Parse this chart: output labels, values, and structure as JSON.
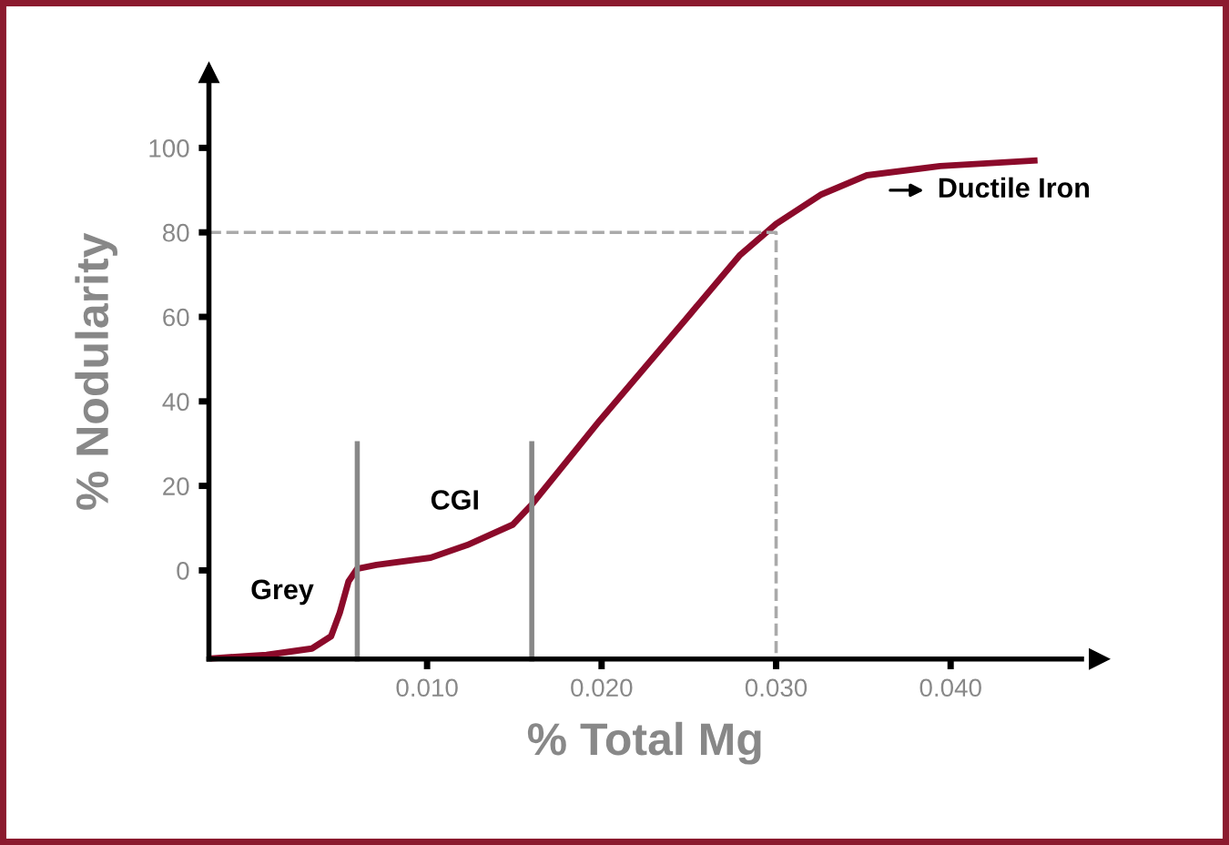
{
  "chart_data": {
    "type": "line",
    "xlabel": "% Total Mg",
    "ylabel": "% Nodularity",
    "xlim": [
      -0.0025,
      0.0475
    ],
    "ylim": [
      -21,
      115
    ],
    "xticks": [
      {
        "value": 0.01,
        "label": "0.010"
      },
      {
        "value": 0.02,
        "label": "0.020"
      },
      {
        "value": 0.03,
        "label": "0.030"
      },
      {
        "value": 0.04,
        "label": "0.040"
      }
    ],
    "yticks": [
      0,
      20,
      40,
      60,
      80,
      100
    ],
    "grid": false,
    "legend": false,
    "marker": "none",
    "series": [
      {
        "color": "#8b0a2a",
        "line_style": "solid",
        "x": [
          -0.0022,
          0.0008,
          0.0034,
          0.0045,
          0.005,
          0.0055,
          0.006,
          0.0071,
          0.0102,
          0.0123,
          0.0149,
          0.016,
          0.0199,
          0.0248,
          0.0279,
          0.03,
          0.0326,
          0.0352,
          0.0394,
          0.0448
        ],
        "values": [
          -20.8,
          -20,
          -18.5,
          -15.6,
          -10,
          -2.6,
          0.4,
          1.3,
          3,
          6,
          10.8,
          15.6,
          35.5,
          59.3,
          74.5,
          82,
          89,
          93.5,
          95.7,
          97
        ]
      },
      {
        "color": "#888888",
        "line_style": "solid",
        "x": [
          0.006,
          0.006
        ],
        "values": [
          -21,
          30
        ]
      },
      {
        "color": "#888888",
        "line_style": "solid",
        "x": [
          0.016,
          0.016
        ],
        "values": [
          -21,
          30
        ]
      },
      {
        "color": "#aaaaaa",
        "line_style": "dashed",
        "x": [
          -0.0025,
          0.03,
          0.03
        ],
        "values": [
          80,
          80,
          -21
        ]
      }
    ],
    "annotations": [
      "Grey",
      "CGI",
      "Ductile Iron"
    ]
  }
}
